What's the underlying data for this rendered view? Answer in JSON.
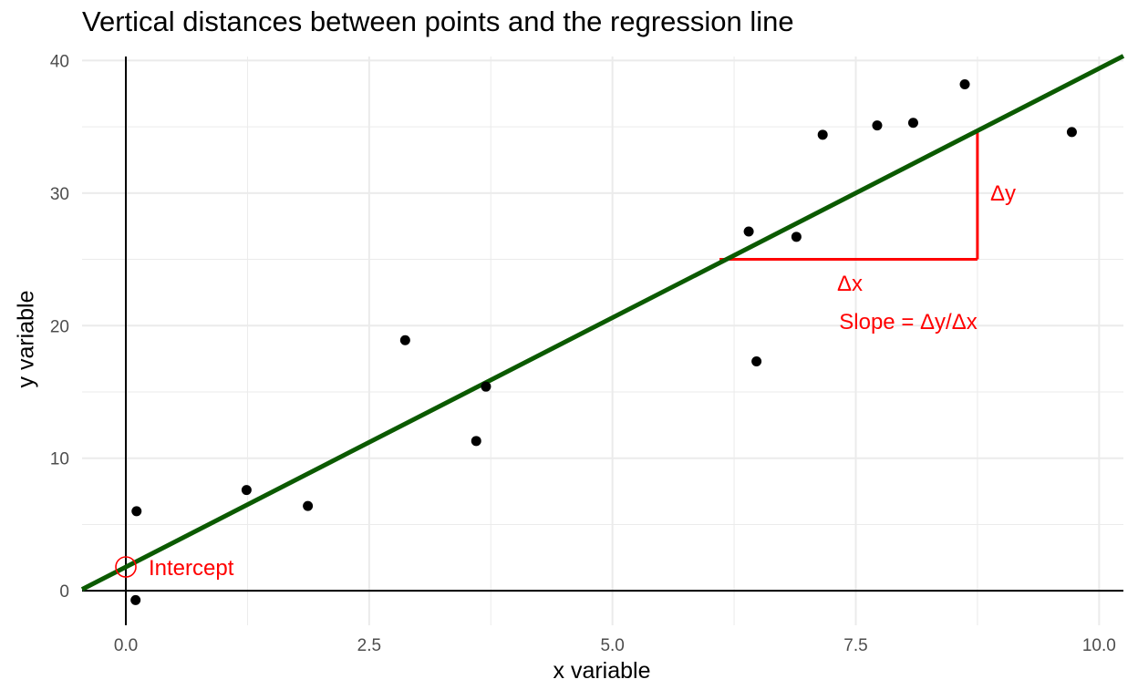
{
  "chart_data": {
    "type": "scatter",
    "title": "Vertical distances between points and the regression line",
    "xlabel": "x variable",
    "ylabel": "y variable",
    "xlim": [
      -0.45,
      10.25
    ],
    "ylim": [
      -2.6,
      40.3
    ],
    "x_ticks": [
      0.0,
      2.5,
      5.0,
      7.5,
      10.0
    ],
    "x_tick_labels": [
      "0.0",
      "2.5",
      "5.0",
      "7.5",
      "10.0"
    ],
    "y_ticks": [
      0,
      10,
      20,
      30,
      40
    ],
    "y_tick_labels": [
      "0",
      "10",
      "20",
      "30",
      "40"
    ],
    "grid": true,
    "points": [
      {
        "x": 0.1,
        "y": -0.7
      },
      {
        "x": 0.11,
        "y": 6.0
      },
      {
        "x": 1.24,
        "y": 7.6
      },
      {
        "x": 1.87,
        "y": 6.4
      },
      {
        "x": 2.87,
        "y": 18.9
      },
      {
        "x": 3.6,
        "y": 11.3
      },
      {
        "x": 3.7,
        "y": 15.4
      },
      {
        "x": 6.4,
        "y": 27.1
      },
      {
        "x": 6.48,
        "y": 17.3
      },
      {
        "x": 6.89,
        "y": 26.7
      },
      {
        "x": 7.16,
        "y": 34.4
      },
      {
        "x": 7.72,
        "y": 35.1
      },
      {
        "x": 8.09,
        "y": 35.3
      },
      {
        "x": 8.62,
        "y": 38.2
      },
      {
        "x": 9.72,
        "y": 34.6
      }
    ],
    "regression_line": {
      "intercept": 1.8,
      "slope": 3.76,
      "color": "#0b5a00"
    },
    "slope_triangle": {
      "x_start": 6.1,
      "x_end": 8.75,
      "y_base": 25.0,
      "color": "#ff0000"
    },
    "annotations": {
      "intercept_label": "Intercept",
      "dx_label": "Δx",
      "dy_label": "Δy",
      "slope_label": "Slope = Δy/Δx",
      "color": "#ff0000"
    },
    "colors": {
      "points": "#000000",
      "grid": "#ebebeb",
      "axis_lines": "#000000"
    }
  }
}
